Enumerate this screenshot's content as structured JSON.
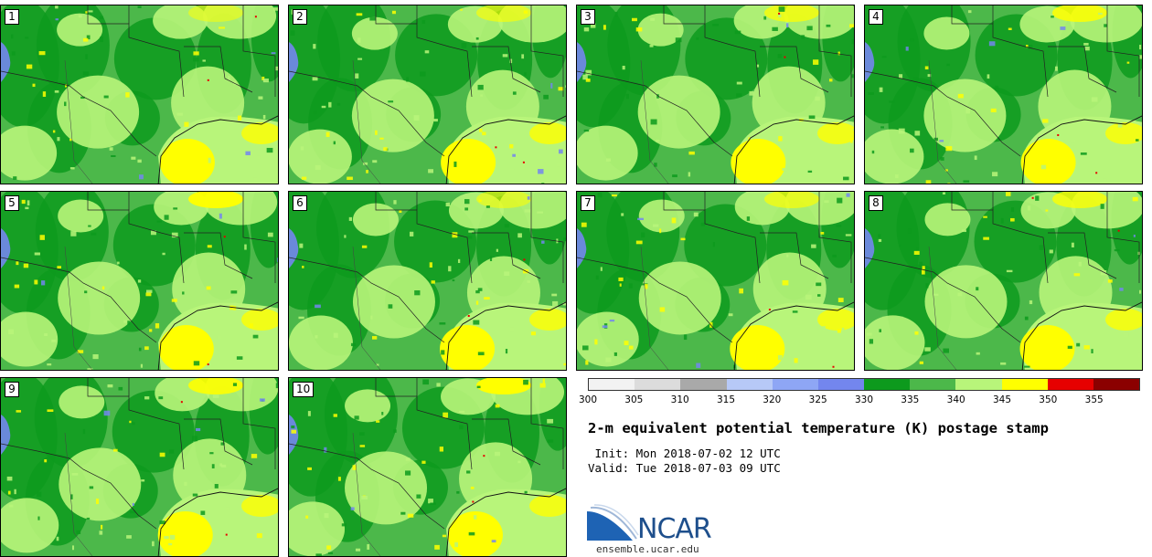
{
  "stamps": [
    {
      "label": "1"
    },
    {
      "label": "2"
    },
    {
      "label": "3"
    },
    {
      "label": "4"
    },
    {
      "label": "5"
    },
    {
      "label": "6"
    },
    {
      "label": "7"
    },
    {
      "label": "8"
    },
    {
      "label": "9"
    },
    {
      "label": "10"
    }
  ],
  "colorbar": {
    "ticks": [
      "300",
      "305",
      "310",
      "315",
      "320",
      "325",
      "330",
      "335",
      "340",
      "345",
      "350",
      "355"
    ],
    "colors": [
      "#f2f2f2",
      "#dcdcdc",
      "#a9a9a9",
      "#b7c9f7",
      "#8ea6f5",
      "#7386ee",
      "#0d9a1d",
      "#4cb84a",
      "#b8f57a",
      "#ffff00",
      "#e60000",
      "#8b0000"
    ]
  },
  "title": "2-m equivalent potential temperature (K) postage stamp",
  "init": " Init: Mon 2018-07-02 12 UTC",
  "valid": "Valid: Tue 2018-07-03 09 UTC",
  "logo": {
    "text": "NCAR",
    "url": "ensemble.ucar.edu"
  }
}
